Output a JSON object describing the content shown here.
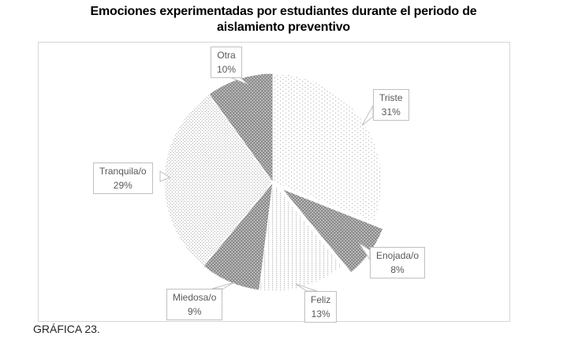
{
  "title": {
    "line1": "Emociones experimentadas por estudiantes durante el periodo de",
    "line2": "aislamiento preventivo",
    "full": "Emociones experimentadas por estudiantes durante el periodo de aislamiento preventivo"
  },
  "caption": "GRÁFICA 23.",
  "chart_data": {
    "type": "pie",
    "title": "Emociones experimentadas por estudiantes durante el periodo de aislamiento preventivo",
    "start_angle_deg": 0,
    "direction": "clockwise",
    "legend": "none",
    "label_style": "callout-boxes",
    "slices": [
      {
        "label": "Triste",
        "value": 31,
        "pct_label": "31%",
        "pattern": "dots-sparse",
        "exploded": false
      },
      {
        "label": "Enojada/o",
        "value": 8,
        "pct_label": "8%",
        "pattern": "dark-dots",
        "exploded": true
      },
      {
        "label": "Feliz",
        "value": 13,
        "pct_label": "13%",
        "pattern": "dots-columns",
        "exploded": false
      },
      {
        "label": "Miedosa/o",
        "value": 9,
        "pct_label": "9%",
        "pattern": "dark-dots",
        "exploded": false
      },
      {
        "label": "Tranquila/o",
        "value": 29,
        "pct_label": "29%",
        "pattern": "dots-fine",
        "exploded": false
      },
      {
        "label": "Otra",
        "value": 10,
        "pct_label": "10%",
        "pattern": "dark-dots",
        "exploded": false
      }
    ],
    "colors": {
      "dark_slice_fill": "#8c8c8c",
      "dark_slice_dot": "#ededed",
      "light_slice_fill": "#ffffff",
      "sparse_dot": "#bdbdbd",
      "fine_dot": "#a6a6a6",
      "slice_separator": "#ffffff",
      "callout_border": "#c0c0c0",
      "callout_text": "#595959",
      "frame_border": "#d6d6d6"
    }
  }
}
